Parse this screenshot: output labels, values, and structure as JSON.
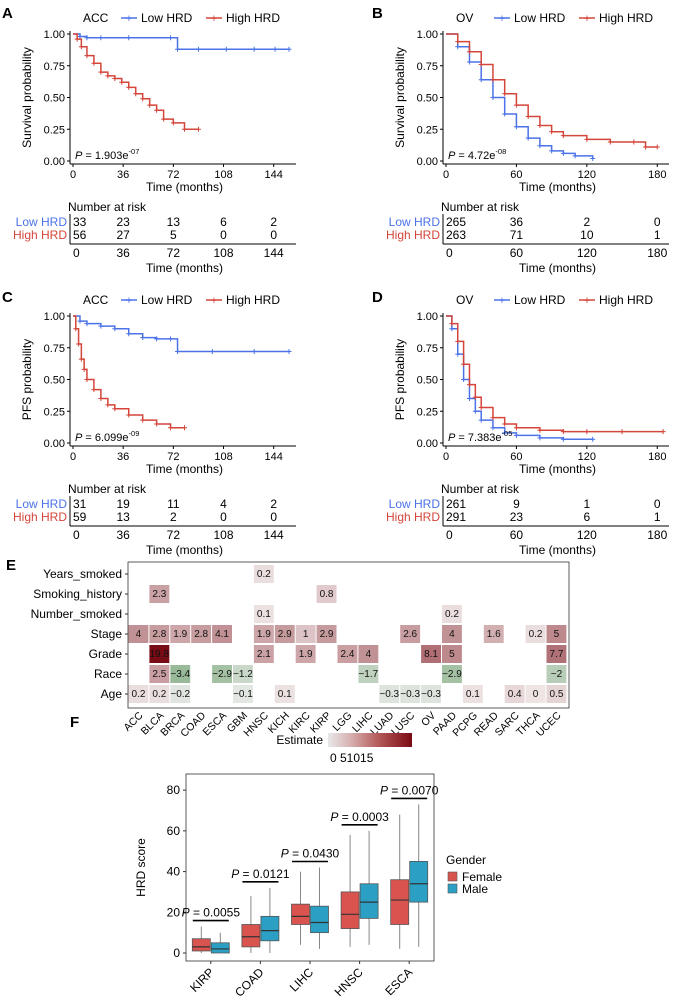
{
  "colors": {
    "low": "#4b72e8",
    "high": "#d4453a",
    "female": "#d9534f",
    "male": "#2ba0c4"
  },
  "chart_data": [
    {
      "type": "line",
      "panel": "A",
      "title": "ACC",
      "ylabel": "Survival probability",
      "xlabel": "Time (months)",
      "legend": [
        "Low HRD",
        "High HRD"
      ],
      "xticks": [
        "0",
        "36",
        "72",
        "108",
        "144"
      ],
      "yticks": [
        "0.00",
        "0.25",
        "0.50",
        "0.75",
        "1.00"
      ],
      "xlim": [
        0,
        160
      ],
      "ylim": [
        0,
        1
      ],
      "p_prefix": "P = ",
      "p_value": "1.903e",
      "p_exp": "-07",
      "series": [
        {
          "name": "Low HRD",
          "x": [
            0,
            5,
            10,
            20,
            40,
            70,
            75,
            90,
            110,
            130,
            145,
            155
          ],
          "y": [
            1,
            0.98,
            0.97,
            0.97,
            0.97,
            0.97,
            0.88,
            0.88,
            0.88,
            0.88,
            0.88,
            0.88
          ]
        },
        {
          "name": "High HRD",
          "x": [
            0,
            3,
            6,
            10,
            15,
            20,
            25,
            30,
            35,
            40,
            45,
            50,
            55,
            60,
            65,
            72,
            80,
            90
          ],
          "y": [
            1,
            0.96,
            0.9,
            0.83,
            0.77,
            0.7,
            0.67,
            0.65,
            0.62,
            0.58,
            0.53,
            0.49,
            0.44,
            0.4,
            0.33,
            0.3,
            0.25,
            0.25
          ]
        }
      ],
      "risk": {
        "title": "Number at risk",
        "rows": [
          {
            "name": "Low HRD",
            "values": [
              "33",
              "23",
              "13",
              "6",
              "2"
            ]
          },
          {
            "name": "High HRD",
            "values": [
              "56",
              "27",
              "5",
              "0",
              "0"
            ]
          }
        ],
        "xticks": [
          "0",
          "36",
          "72",
          "108",
          "144"
        ],
        "xlabel": "Time (months)"
      }
    },
    {
      "type": "line",
      "panel": "B",
      "title": "OV",
      "ylabel": "Survival probability",
      "xlabel": "Time (months)",
      "legend": [
        "Low HRD",
        "High HRD"
      ],
      "xticks": [
        "0",
        "60",
        "120",
        "180"
      ],
      "yticks": [
        "0.00",
        "0.25",
        "0.50",
        "0.75",
        "1.00"
      ],
      "xlim": [
        0,
        190
      ],
      "ylim": [
        0,
        1
      ],
      "p_prefix": "P = ",
      "p_value": "4.72e",
      "p_exp": "-08",
      "series": [
        {
          "name": "Low HRD",
          "x": [
            0,
            10,
            20,
            30,
            40,
            50,
            60,
            70,
            80,
            90,
            100,
            110,
            125
          ],
          "y": [
            1,
            0.9,
            0.78,
            0.64,
            0.5,
            0.37,
            0.27,
            0.18,
            0.12,
            0.08,
            0.06,
            0.04,
            0.02
          ]
        },
        {
          "name": "High HRD",
          "x": [
            0,
            10,
            20,
            30,
            40,
            50,
            60,
            70,
            80,
            90,
            100,
            120,
            140,
            160,
            170,
            180
          ],
          "y": [
            1,
            0.94,
            0.86,
            0.76,
            0.64,
            0.53,
            0.44,
            0.35,
            0.28,
            0.23,
            0.2,
            0.17,
            0.15,
            0.15,
            0.11,
            0.11
          ]
        }
      ],
      "risk": {
        "title": "Number at risk",
        "rows": [
          {
            "name": "Low HRD",
            "values": [
              "265",
              "36",
              "2",
              "0"
            ]
          },
          {
            "name": "High HRD",
            "values": [
              "263",
              "71",
              "10",
              "1"
            ]
          }
        ],
        "xticks": [
          "0",
          "60",
          "120",
          "180"
        ],
        "xlabel": "Time (months)"
      }
    },
    {
      "type": "line",
      "panel": "C",
      "title": "ACC",
      "ylabel": "PFS probability",
      "xlabel": "Time (months)",
      "legend": [
        "Low HRD",
        "High HRD"
      ],
      "xticks": [
        "0",
        "36",
        "72",
        "108",
        "144"
      ],
      "yticks": [
        "0.00",
        "0.25",
        "0.50",
        "0.75",
        "1.00"
      ],
      "xlim": [
        0,
        160
      ],
      "ylim": [
        0,
        1
      ],
      "p_prefix": "P = ",
      "p_value": "6.099e",
      "p_exp": "-09",
      "series": [
        {
          "name": "Low HRD",
          "x": [
            0,
            5,
            10,
            20,
            30,
            40,
            50,
            60,
            70,
            75,
            100,
            130,
            155
          ],
          "y": [
            1,
            0.96,
            0.94,
            0.92,
            0.9,
            0.86,
            0.83,
            0.82,
            0.82,
            0.72,
            0.72,
            0.72,
            0.72
          ]
        },
        {
          "name": "High HRD",
          "x": [
            0,
            2,
            4,
            6,
            8,
            10,
            15,
            20,
            25,
            30,
            40,
            50,
            60,
            70,
            80
          ],
          "y": [
            1,
            0.9,
            0.78,
            0.66,
            0.58,
            0.5,
            0.42,
            0.35,
            0.3,
            0.27,
            0.22,
            0.18,
            0.15,
            0.12,
            0.12
          ]
        }
      ],
      "risk": {
        "title": "Number at risk",
        "rows": [
          {
            "name": "Low HRD",
            "values": [
              "31",
              "19",
              "11",
              "4",
              "2"
            ]
          },
          {
            "name": "High HRD",
            "values": [
              "59",
              "13",
              "2",
              "0",
              "0"
            ]
          }
        ],
        "xticks": [
          "0",
          "36",
          "72",
          "108",
          "144"
        ],
        "xlabel": "Time (months)"
      }
    },
    {
      "type": "line",
      "panel": "D",
      "title": "OV",
      "ylabel": "PFS probability",
      "xlabel": "Time (months)",
      "legend": [
        "Low HRD",
        "High HRD"
      ],
      "xticks": [
        "0",
        "60",
        "120",
        "180"
      ],
      "yticks": [
        "0.00",
        "0.25",
        "0.50",
        "0.75",
        "1.00"
      ],
      "xlim": [
        0,
        190
      ],
      "ylim": [
        0,
        1
      ],
      "p_prefix": "P = ",
      "p_value": "7.383e",
      "p_exp": "-05",
      "series": [
        {
          "name": "Low HRD",
          "x": [
            0,
            5,
            10,
            15,
            20,
            25,
            30,
            40,
            50,
            60,
            80,
            100,
            125
          ],
          "y": [
            1,
            0.9,
            0.7,
            0.5,
            0.35,
            0.25,
            0.18,
            0.12,
            0.08,
            0.06,
            0.04,
            0.03,
            0.03
          ]
        },
        {
          "name": "High HRD",
          "x": [
            0,
            5,
            10,
            15,
            20,
            25,
            30,
            40,
            50,
            60,
            80,
            100,
            120,
            150,
            185
          ],
          "y": [
            1,
            0.94,
            0.8,
            0.62,
            0.46,
            0.36,
            0.28,
            0.2,
            0.15,
            0.12,
            0.1,
            0.09,
            0.09,
            0.09,
            0.09
          ]
        }
      ],
      "risk": {
        "title": "Number at risk",
        "rows": [
          {
            "name": "Low HRD",
            "values": [
              "261",
              "9",
              "1",
              "0"
            ]
          },
          {
            "name": "High HRD",
            "values": [
              "291",
              "23",
              "6",
              "1"
            ]
          }
        ],
        "xticks": [
          "0",
          "60",
          "120",
          "180"
        ],
        "xlabel": "Time (months)"
      }
    },
    {
      "type": "heatmap",
      "panel": "E",
      "rows": [
        "Years_smoked",
        "Smoking_history",
        "Number_smoked",
        "Stage",
        "Grade",
        "Race",
        "Age"
      ],
      "cols": [
        "ACC",
        "BLCA",
        "BRCA",
        "COAD",
        "ESCA",
        "GBM",
        "HNSC",
        "KICH",
        "KIRC",
        "KIRP",
        "LGG",
        "LIHC",
        "LUAD",
        "LUSC",
        "OV",
        "PAAD",
        "PCPG",
        "READ",
        "SARC",
        "THCA",
        "UCEC"
      ],
      "cells": [
        {
          "r": 0,
          "c": 6,
          "v": "0.2"
        },
        {
          "r": 1,
          "c": 1,
          "v": "2.3"
        },
        {
          "r": 1,
          "c": 9,
          "v": "0.8"
        },
        {
          "r": 2,
          "c": 6,
          "v": "0.1"
        },
        {
          "r": 2,
          "c": 15,
          "v": "0.2"
        },
        {
          "r": 3,
          "c": 0,
          "v": "4"
        },
        {
          "r": 3,
          "c": 1,
          "v": "2.8"
        },
        {
          "r": 3,
          "c": 2,
          "v": "1.9"
        },
        {
          "r": 3,
          "c": 3,
          "v": "2.8"
        },
        {
          "r": 3,
          "c": 4,
          "v": "4.1"
        },
        {
          "r": 3,
          "c": 6,
          "v": "1.9"
        },
        {
          "r": 3,
          "c": 7,
          "v": "2.9"
        },
        {
          "r": 3,
          "c": 8,
          "v": "1"
        },
        {
          "r": 3,
          "c": 9,
          "v": "2.9"
        },
        {
          "r": 3,
          "c": 13,
          "v": "2.6"
        },
        {
          "r": 3,
          "c": 15,
          "v": "4"
        },
        {
          "r": 3,
          "c": 17,
          "v": "1.6"
        },
        {
          "r": 3,
          "c": 19,
          "v": "0.2"
        },
        {
          "r": 3,
          "c": 20,
          "v": "5"
        },
        {
          "r": 4,
          "c": 1,
          "v": "19.8"
        },
        {
          "r": 4,
          "c": 6,
          "v": "2.1"
        },
        {
          "r": 4,
          "c": 8,
          "v": "1.9"
        },
        {
          "r": 4,
          "c": 10,
          "v": "2.4"
        },
        {
          "r": 4,
          "c": 11,
          "v": "4"
        },
        {
          "r": 4,
          "c": 14,
          "v": "8.1"
        },
        {
          "r": 4,
          "c": 15,
          "v": "5"
        },
        {
          "r": 4,
          "c": 20,
          "v": "7.7"
        },
        {
          "r": 5,
          "c": 1,
          "v": "2.5"
        },
        {
          "r": 5,
          "c": 2,
          "v": "−3.4"
        },
        {
          "r": 5,
          "c": 4,
          "v": "−2.9"
        },
        {
          "r": 5,
          "c": 5,
          "v": "−1.2"
        },
        {
          "r": 5,
          "c": 11,
          "v": "−1.7"
        },
        {
          "r": 5,
          "c": 15,
          "v": "−2.9"
        },
        {
          "r": 5,
          "c": 20,
          "v": "−2"
        },
        {
          "r": 6,
          "c": 0,
          "v": "0.2"
        },
        {
          "r": 6,
          "c": 1,
          "v": "0.2"
        },
        {
          "r": 6,
          "c": 2,
          "v": "−0.2"
        },
        {
          "r": 6,
          "c": 5,
          "v": "−0.1"
        },
        {
          "r": 6,
          "c": 7,
          "v": "0.1"
        },
        {
          "r": 6,
          "c": 12,
          "v": "−0.3"
        },
        {
          "r": 6,
          "c": 13,
          "v": "−0.3"
        },
        {
          "r": 6,
          "c": 14,
          "v": "−0.3"
        },
        {
          "r": 6,
          "c": 16,
          "v": "0.1"
        },
        {
          "r": 6,
          "c": 18,
          "v": "0.4"
        },
        {
          "r": 6,
          "c": 19,
          "v": "0"
        },
        {
          "r": 6,
          "c": 20,
          "v": "0.5"
        }
      ],
      "legend_title": "Estimate",
      "legend_ticks": [
        "0",
        "5",
        "10",
        "15"
      ],
      "legend_tick_text": "0 51015"
    },
    {
      "type": "box",
      "panel": "F",
      "ylabel": "HRD score",
      "ylim": [
        0,
        85
      ],
      "yticks": [
        "0",
        "20",
        "40",
        "60",
        "80"
      ],
      "categories": [
        "KIRP",
        "COAD",
        "LIHC",
        "HNSC",
        "ESCA"
      ],
      "legend_title": "Gender",
      "legend": [
        "Female",
        "Male"
      ],
      "p_labels": [
        "0.0055",
        "0.0121",
        "0.0430",
        "0.0003",
        "0.0070"
      ],
      "p_prefix": "P = ",
      "boxes": [
        {
          "cat": 0,
          "g": 0,
          "min": 0,
          "q1": 1,
          "med": 3,
          "q3": 7,
          "max": 13
        },
        {
          "cat": 0,
          "g": 1,
          "min": 0,
          "q1": 0,
          "med": 2,
          "q3": 5,
          "max": 10
        },
        {
          "cat": 1,
          "g": 0,
          "min": 0,
          "q1": 3,
          "med": 8,
          "q3": 14,
          "max": 28
        },
        {
          "cat": 1,
          "g": 1,
          "min": 0,
          "q1": 6,
          "med": 11,
          "q3": 18,
          "max": 32
        },
        {
          "cat": 2,
          "g": 0,
          "min": 4,
          "q1": 14,
          "med": 18,
          "q3": 24,
          "max": 40
        },
        {
          "cat": 2,
          "g": 1,
          "min": 2,
          "q1": 10,
          "med": 15,
          "q3": 23,
          "max": 42
        },
        {
          "cat": 3,
          "g": 0,
          "min": 3,
          "q1": 12,
          "med": 19,
          "q3": 30,
          "max": 58
        },
        {
          "cat": 3,
          "g": 1,
          "min": 4,
          "q1": 17,
          "med": 25,
          "q3": 34,
          "max": 60
        },
        {
          "cat": 4,
          "g": 0,
          "min": 2,
          "q1": 14,
          "med": 26,
          "q3": 36,
          "max": 68
        },
        {
          "cat": 4,
          "g": 1,
          "min": 3,
          "q1": 25,
          "med": 34,
          "q3": 45,
          "max": 73
        }
      ]
    }
  ]
}
